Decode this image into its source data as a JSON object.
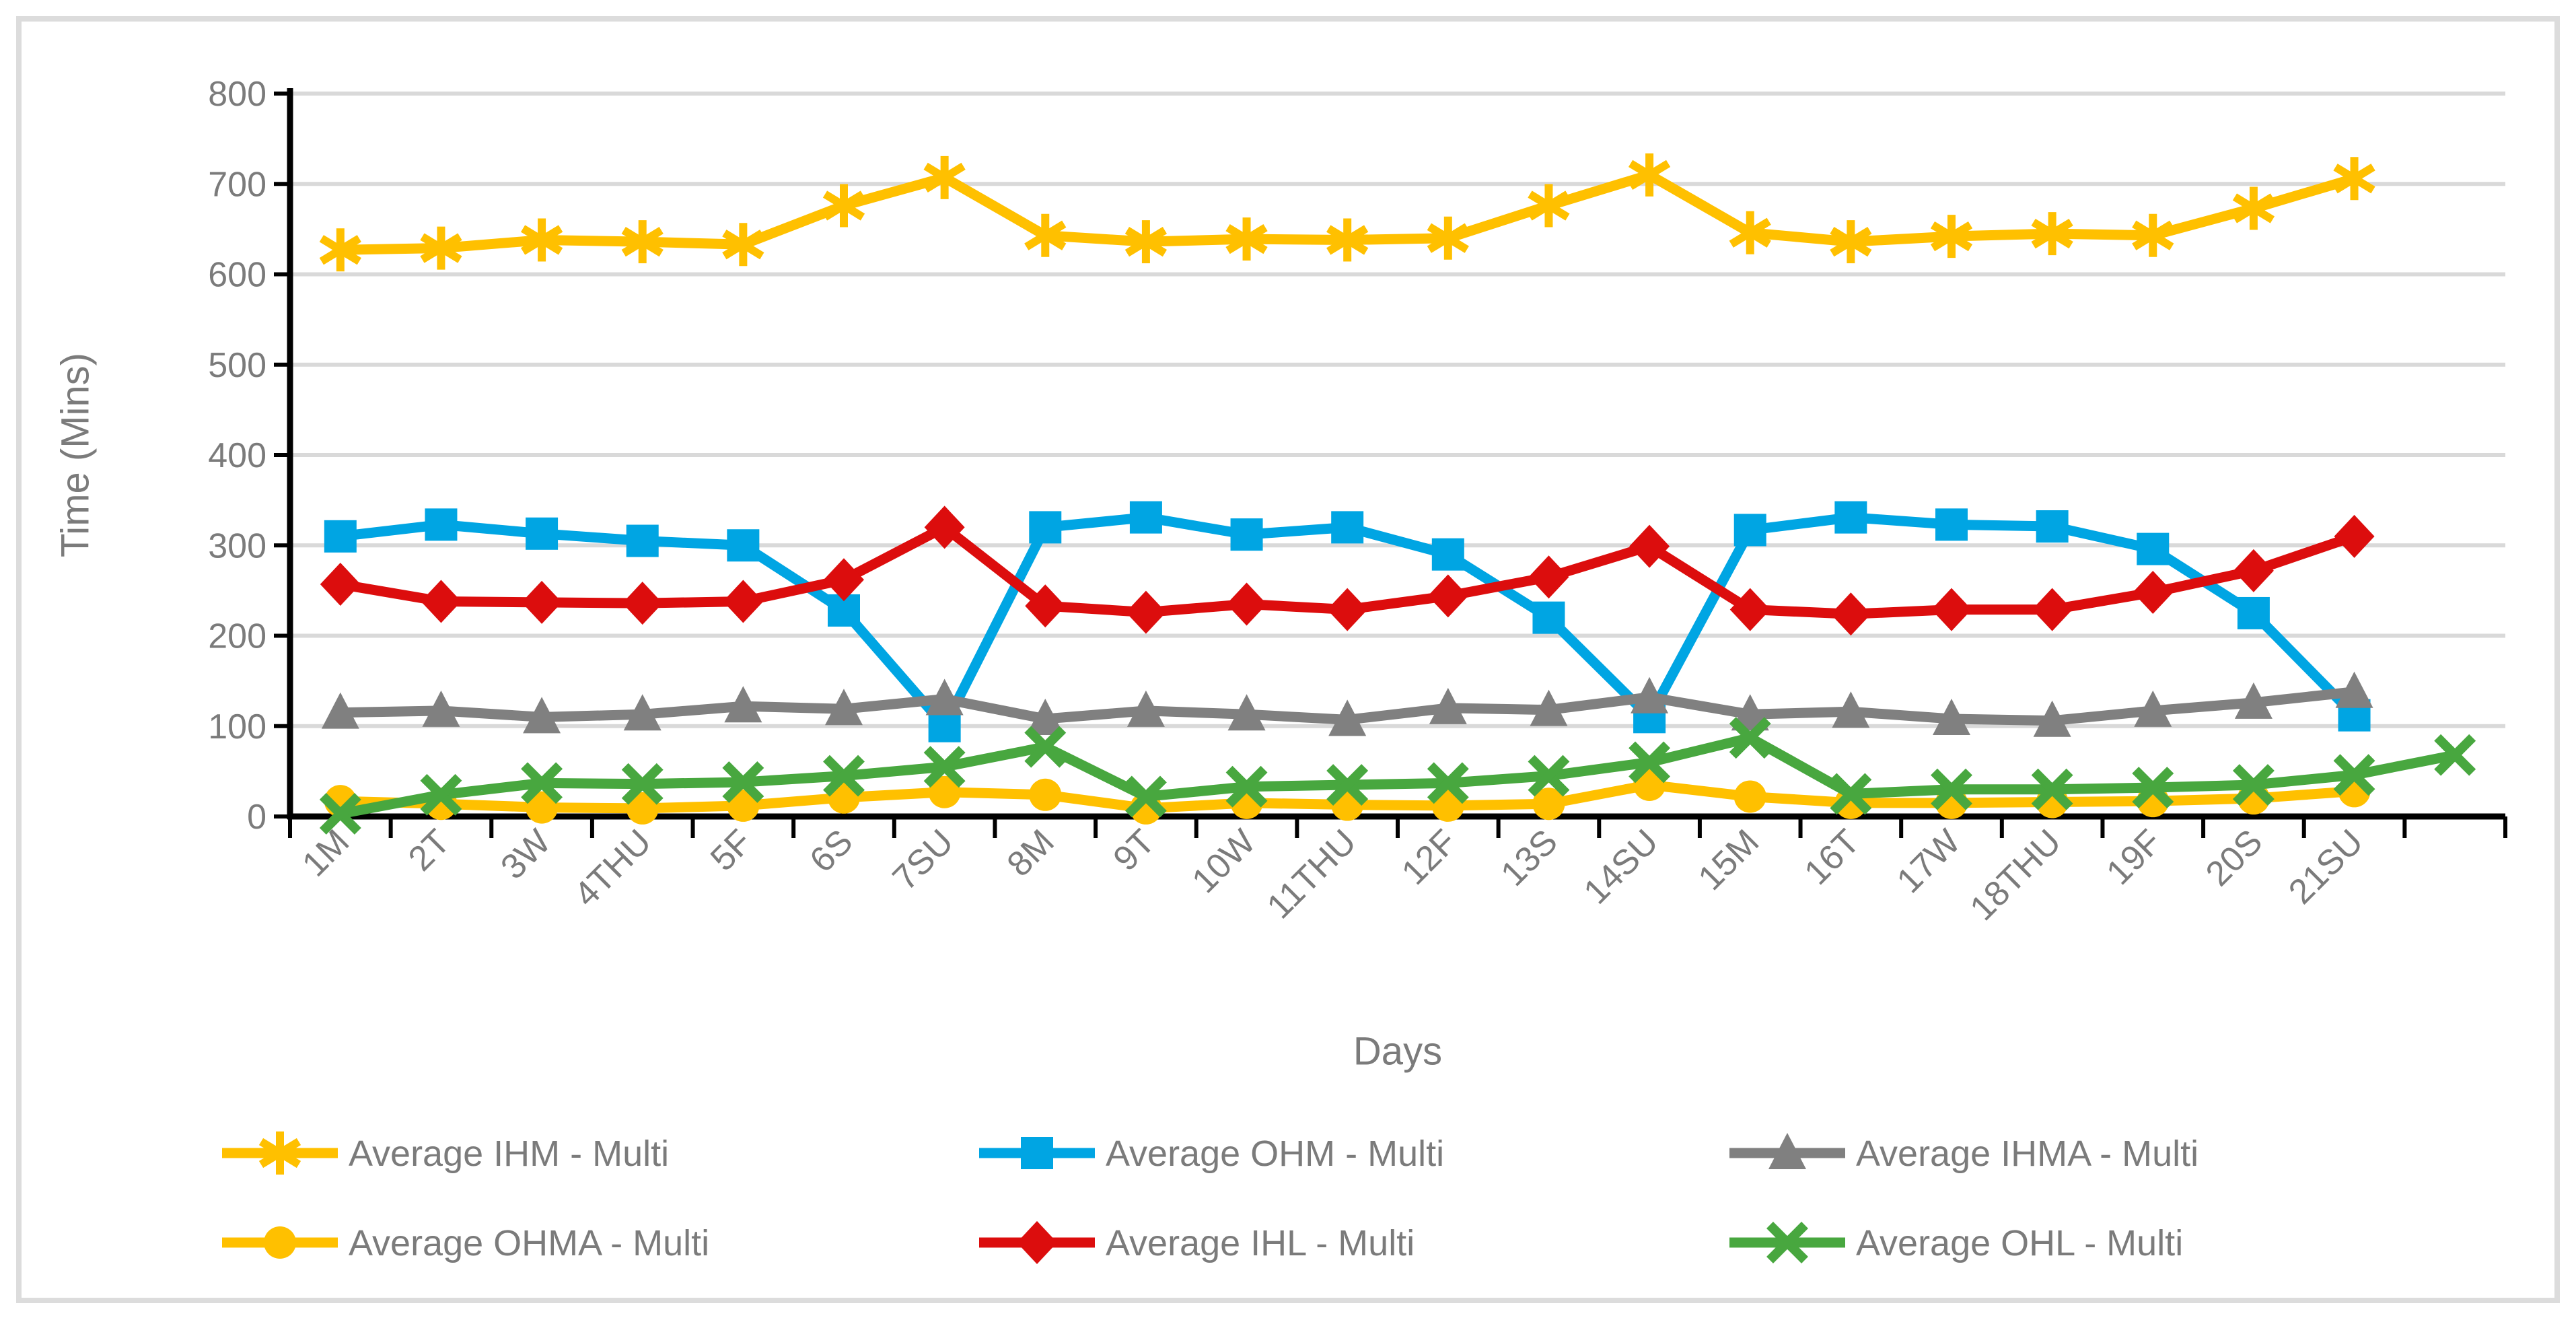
{
  "frame": {
    "border_color": "#DCDCDC",
    "background": "#FFFFFF"
  },
  "axes": {
    "y_title": "Time (Mins)",
    "x_title": "Days",
    "text_color": "#7B7B7B",
    "axis_line_color": "#000000",
    "gridline_color": "#D9D9D9"
  },
  "chart_data": {
    "type": "line",
    "title": "",
    "xlabel": "Days",
    "ylabel": "Time (Mins)",
    "ylim": [
      0,
      800
    ],
    "ytick_step": 100,
    "y_tick_labels": [
      "0",
      "100",
      "200",
      "300",
      "400",
      "500",
      "600",
      "700",
      "800"
    ],
    "grid": "horizontal",
    "legend_position": "bottom",
    "categories": [
      "1M",
      "2T",
      "3W",
      "4THU",
      "5F",
      "6S",
      "7SU",
      "8M",
      "9T",
      "10W",
      "11THU",
      "12F",
      "13S",
      "14SU",
      "15M",
      "16T",
      "17W",
      "18THU",
      "19F",
      "20S",
      "21SU",
      ""
    ],
    "series": [
      {
        "name": "Average IHM - Multi",
        "marker": "asterisk",
        "color": "#FFC000",
        "values": [
          627,
          629,
          638,
          636,
          633,
          676,
          707,
          643,
          636,
          639,
          638,
          640,
          676,
          710,
          646,
          636,
          642,
          645,
          643,
          673,
          706,
          null
        ]
      },
      {
        "name": "Average OHM - Multi",
        "marker": "square",
        "color": "#00A5E3",
        "values": [
          310,
          323,
          313,
          305,
          300,
          228,
          100,
          320,
          331,
          312,
          320,
          290,
          220,
          110,
          317,
          331,
          323,
          321,
          296,
          225,
          112,
          null
        ]
      },
      {
        "name": "Average IHMA - Multi",
        "marker": "triangle",
        "color": "#808080",
        "values": [
          115,
          117,
          110,
          113,
          122,
          119,
          130,
          108,
          117,
          113,
          107,
          120,
          118,
          132,
          113,
          116,
          108,
          106,
          117,
          126,
          138,
          null
        ]
      },
      {
        "name": "Average OHMA - Multi",
        "marker": "circle",
        "color": "#FFC000",
        "values": [
          17,
          14,
          10,
          9,
          12,
          21,
          27,
          24,
          9,
          15,
          13,
          12,
          14,
          35,
          22,
          15,
          15,
          16,
          17,
          20,
          28,
          null
        ]
      },
      {
        "name": "Average IHL - Multi",
        "marker": "diamond",
        "color": "#DC0D0D",
        "values": [
          257,
          238,
          237,
          236,
          238,
          262,
          320,
          233,
          226,
          235,
          229,
          244,
          265,
          299,
          229,
          224,
          229,
          229,
          248,
          272,
          310,
          null
        ]
      },
      {
        "name": "Average OHL - Multi",
        "marker": "x",
        "color": "#48A73F",
        "values": [
          3,
          24,
          37,
          36,
          38,
          45,
          55,
          77,
          22,
          33,
          35,
          37,
          45,
          60,
          87,
          25,
          30,
          30,
          32,
          35,
          46,
          68
        ]
      }
    ],
    "legend_rows": [
      [
        0,
        1,
        2
      ],
      [
        3,
        4,
        5
      ]
    ]
  }
}
